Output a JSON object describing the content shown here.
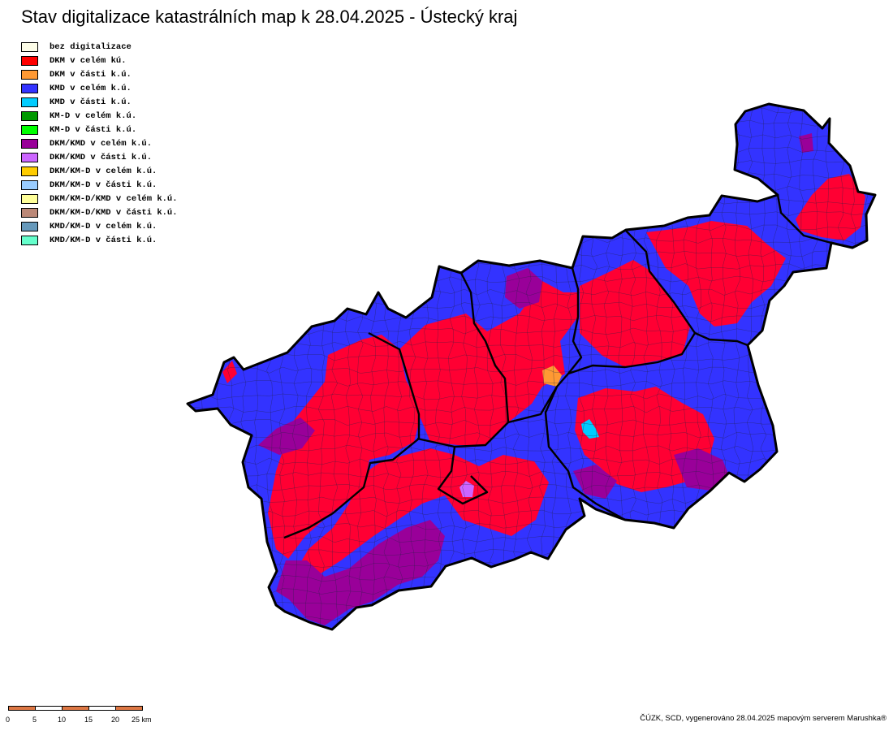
{
  "title": "Stav digitalizace katastrálních map k 28.04.2025 - Ústecký kraj",
  "legend": [
    {
      "label": "bez digitalizace",
      "color": "#fdfde8"
    },
    {
      "label": "DKM v celém kú.",
      "color": "#ff0000"
    },
    {
      "label": "DKM v části k.ú.",
      "color": "#ff9933"
    },
    {
      "label": "KMD v celém k.ú.",
      "color": "#3333ff"
    },
    {
      "label": "KMD v části k.ú.",
      "color": "#00ccff"
    },
    {
      "label": "KM-D v celém k.ú.",
      "color": "#009900"
    },
    {
      "label": "KM-D v části k.ú.",
      "color": "#00ff00"
    },
    {
      "label": "DKM/KMD v celém k.ú.",
      "color": "#990099"
    },
    {
      "label": "DKM/KMD v části k.ú.",
      "color": "#cc66ff"
    },
    {
      "label": "DKM/KM-D v celém k.ú.",
      "color": "#ffcc00"
    },
    {
      "label": "DKM/KM-D v části k.ú.",
      "color": "#99ccff"
    },
    {
      "label": "DKM/KM-D/KMD v celém k.ú.",
      "color": "#ffff99"
    },
    {
      "label": "DKM/KM-D/KMD v části k.ú.",
      "color": "#bb8877"
    },
    {
      "label": "KMD/KM-D v celém k.ú.",
      "color": "#6699bb"
    },
    {
      "label": "KMD/KM-D v části k.ú.",
      "color": "#66ffcc"
    }
  ],
  "map_colors": {
    "base": "#3333ff",
    "dkm": "#ff0033",
    "mixed": "#990099",
    "partial_dkm": "#ff9933",
    "partial_kmd": "#00ccff",
    "partial_mixed": "#cc66ff",
    "border": "#000000"
  },
  "scale": {
    "labels": [
      "0",
      "5",
      "10",
      "15",
      "20",
      "25 km"
    ],
    "colors": [
      "#dd7744",
      "#ffffff"
    ]
  },
  "credit": "ČÚZK, SCD, vygenerováno 28.04.2025 mapovým serverem Marushka®"
}
